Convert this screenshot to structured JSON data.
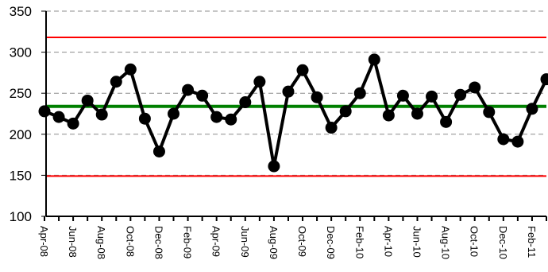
{
  "chart_data": {
    "type": "line",
    "title": "",
    "xlabel": "",
    "ylabel": "",
    "ylim": [
      100,
      350
    ],
    "y_ticks": [
      "100",
      "150",
      "200",
      "250",
      "300",
      "350"
    ],
    "grid": "horizontal dashed",
    "x": [
      "Apr-08",
      "May-08",
      "Jun-08",
      "Jul-08",
      "Aug-08",
      "Sep-08",
      "Oct-08",
      "Nov-08",
      "Dec-08",
      "Jan-09",
      "Feb-09",
      "Mar-09",
      "Apr-09",
      "May-09",
      "Jun-09",
      "Jul-09",
      "Aug-09",
      "Sep-09",
      "Oct-09",
      "Nov-09",
      "Dec-09",
      "Jan-10",
      "Feb-10",
      "Mar-10",
      "Apr-10",
      "May-10",
      "Jun-10",
      "Jul-10",
      "Aug-10",
      "Sep-10",
      "Oct-10",
      "Nov-10",
      "Dec-10",
      "Jan-11",
      "Feb-11",
      "Mar-11"
    ],
    "x_tick_labels": [
      "Apr-08",
      "Jun-08",
      "Aug-08",
      "Oct-08",
      "Dec-08",
      "Feb-09",
      "Apr-09",
      "Jun-09",
      "Aug-09",
      "Oct-09",
      "Dec-09",
      "Feb-10",
      "Apr-10",
      "Jun-10",
      "Aug-10",
      "Oct-10",
      "Dec-10",
      "Feb-11"
    ],
    "series": [
      {
        "values": [
          228,
          221,
          213,
          241,
          224,
          264,
          279,
          219,
          179,
          225,
          254,
          247,
          221,
          218,
          239,
          264,
          161,
          252,
          278,
          245,
          208,
          228,
          250,
          291,
          223,
          247,
          225,
          246,
          215,
          248,
          257,
          227,
          194,
          191,
          231,
          267
        ],
        "color": "#000000"
      }
    ],
    "reference_lines": [
      {
        "value": 318,
        "color": "#ff0000"
      },
      {
        "value": 234,
        "color": "#008000"
      },
      {
        "value": 149,
        "color": "#ff0000"
      }
    ]
  }
}
